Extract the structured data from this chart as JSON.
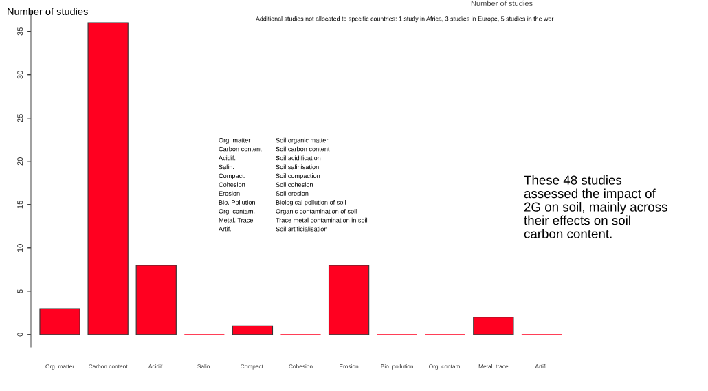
{
  "chart_data": {
    "type": "bar",
    "ylabel": "Number of studies",
    "categories": [
      "Org. matter",
      "Carbon content",
      "Acidif.",
      "Salin.",
      "Compact.",
      "Cohesion",
      "Erosion",
      "Bio. pollution",
      "Org. contam.",
      "Metal. trace",
      "Artifi."
    ],
    "values": [
      3,
      36,
      8,
      0,
      1,
      0,
      8,
      0,
      0,
      2,
      0
    ],
    "color": "#ff0020",
    "ylim": [
      -1.44,
      37.44
    ],
    "yticks": [
      0,
      5,
      10,
      15,
      20,
      25,
      30,
      35
    ],
    "grid": false,
    "annotations": [
      "Number of studies",
      "Additional studies not allocated to specific countries: 1 study in Africa, 3 studies in Europe, 5 studies in the wor",
      "Org. matter",
      "Soil organic matter",
      "Carbon content",
      "Soil carbon content",
      "Acidif.",
      "Soil acidification",
      "Salin.",
      "Soil salinisation",
      "Compact.",
      "Soil compaction",
      "Cohesion",
      "Soil cohesion",
      "Erosion",
      "Soil erosion",
      "Bio. Pollution",
      "Biological pollution of soil",
      "Org. contam.",
      "Organic contamination of soil",
      "Metal. Trace",
      "Trace metal contamination in soil",
      "Artif.",
      "Soil artificialisation",
      "These 48 studies\nassessed the impact of\n2G on soil, mainly across\ntheir effects on soil\ncarbon content."
    ]
  }
}
